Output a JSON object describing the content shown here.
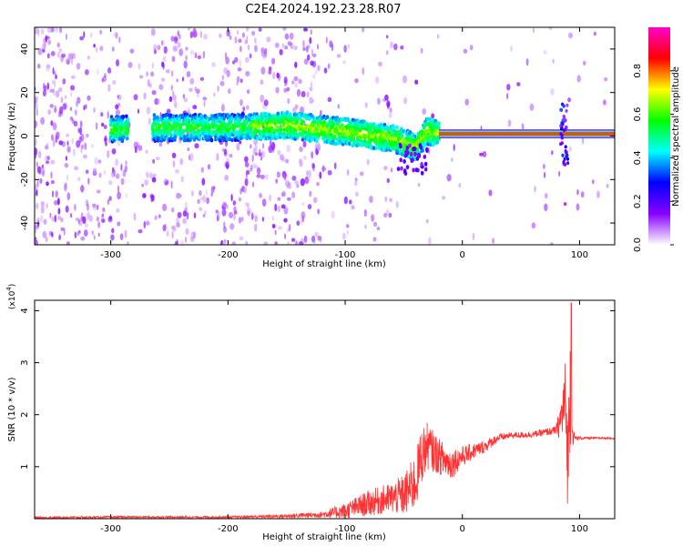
{
  "title": "C2E4.2024.192.23.28.R07",
  "chart_data": [
    {
      "type": "heatmap",
      "xlabel": "Height of straight line (km)",
      "ylabel": "Frequency (Hz)",
      "xlim": [
        -365,
        130
      ],
      "ylim": [
        -50,
        50
      ],
      "x_ticks": [
        -300,
        -200,
        -100,
        0,
        100
      ],
      "y_ticks": [
        -40,
        -20,
        0,
        20,
        40
      ],
      "colorbar": {
        "label": "Normalized spectral amplitude",
        "range": [
          0,
          1
        ],
        "ticks": [
          0.0,
          0.2,
          0.4,
          0.6,
          0.8
        ],
        "colormap": [
          "#ffffff",
          "#8800ff",
          "#0000ff",
          "#00ffff",
          "#00ff00",
          "#ffff00",
          "#ff0000",
          "#ff00cc"
        ]
      },
      "ridge": {
        "points": [
          [
            -300,
            3
          ],
          [
            -250,
            4
          ],
          [
            -200,
            4
          ],
          [
            -150,
            5
          ],
          [
            -100,
            2
          ],
          [
            -60,
            -1
          ],
          [
            -40,
            -5
          ],
          [
            -30,
            2
          ],
          [
            -10,
            1
          ],
          [
            100,
            1
          ],
          [
            130,
            1
          ]
        ],
        "strong_segment": [
          -20,
          130
        ],
        "spikes": [
          [
            87,
            0
          ]
        ]
      },
      "grid": false
    },
    {
      "type": "line",
      "xlabel": "Height of straight line (km)",
      "ylabel": "SNR (10 * v/v)",
      "y_multiplier_label": "(x10",
      "y_multiplier_exp": "4",
      "xlim": [
        -365,
        130
      ],
      "ylim": [
        0,
        4.2
      ],
      "x_ticks": [
        -300,
        -200,
        -100,
        0,
        100
      ],
      "y_ticks": [
        1,
        2,
        3,
        4
      ],
      "color": "#ff3333",
      "series": [
        {
          "x": [
            -365,
            -300,
            -200,
            -150,
            -120,
            -100,
            -80,
            -60,
            -50,
            -40,
            -35,
            -30,
            -25,
            -20,
            -10,
            0,
            10,
            20,
            30,
            40,
            60,
            80,
            84,
            88,
            90,
            92,
            94,
            96,
            100,
            115,
            130
          ],
          "values": [
            0.02,
            0.03,
            0.03,
            0.05,
            0.08,
            0.15,
            0.3,
            0.4,
            0.45,
            0.7,
            1.2,
            1.4,
            1.3,
            1.2,
            1.05,
            1.2,
            1.3,
            1.4,
            1.55,
            1.6,
            1.62,
            1.7,
            1.9,
            2.3,
            1.0,
            2.6,
            1.6,
            1.55,
            1.55,
            1.55,
            1.55
          ],
          "noise": [
            0.02,
            0.02,
            0.02,
            0.04,
            0.06,
            0.15,
            0.25,
            0.3,
            0.4,
            0.55,
            0.55,
            0.45,
            0.4,
            0.35,
            0.3,
            0.2,
            0.15,
            0.12,
            0.08,
            0.06,
            0.06,
            0.08,
            0.4,
            0.8,
            0.9,
            1.2,
            0.2,
            0.06,
            0.03,
            0.02,
            0.02
          ],
          "peak": [
            93,
            4.15
          ]
        }
      ],
      "grid": false
    }
  ]
}
